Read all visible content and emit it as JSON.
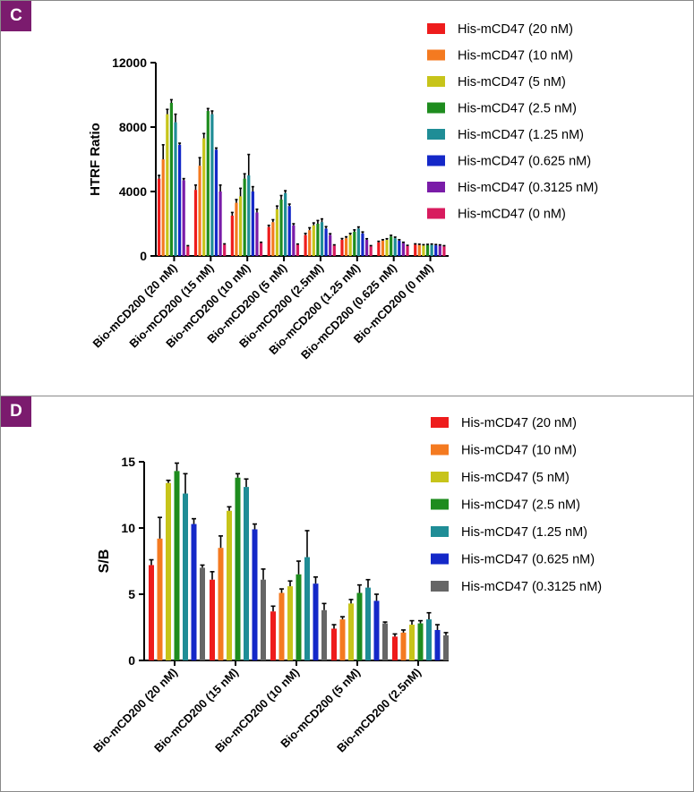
{
  "panels": [
    {
      "tag": "C",
      "chart_data": {
        "type": "bar",
        "ylabel": "HTRF Ratio",
        "ylim": [
          0,
          12000
        ],
        "yticks": [
          0,
          4000,
          8000,
          12000
        ],
        "ytick_labels": [
          "0",
          "4000",
          "8000",
          "12000"
        ],
        "categories": [
          "Bio-mCD200 (20 nM)",
          "Bio-mCD200 (15 nM)",
          "Bio-mCD200 (10 nM)",
          "Bio-mCD200 (5 nM)",
          "Bio-mCD200 (2.5nM)",
          "Bio-mCD200 (1.25 nM)",
          "Bio-mCD200 (0.625 nM)",
          "Bio-mCD200 (0 nM)"
        ],
        "legend_position": "right",
        "grid": false,
        "series": [
          {
            "name": "His-mCD47 (20 nM)",
            "color": "#ee1c1c",
            "values": [
              4800,
              4100,
              2500,
              1800,
              1300,
              1000,
              850,
              700
            ],
            "errors": [
              200,
              300,
              200,
              100,
              100,
              80,
              60,
              50
            ]
          },
          {
            "name": "His-mCD47 (10 nM)",
            "color": "#f47a20",
            "values": [
              6000,
              5600,
              3300,
              2100,
              1600,
              1100,
              950,
              680
            ],
            "errors": [
              900,
              500,
              200,
              150,
              150,
              90,
              60,
              50
            ]
          },
          {
            "name": "His-mCD47 (5 nM)",
            "color": "#c7c41a",
            "values": [
              8800,
              7300,
              3700,
              2900,
              1900,
              1300,
              1000,
              650
            ],
            "errors": [
              300,
              300,
              500,
              200,
              150,
              100,
              70,
              50
            ]
          },
          {
            "name": "His-mCD47 (2.5 nM)",
            "color": "#1e8c1e",
            "values": [
              9500,
              9000,
              4800,
              3500,
              2000,
              1500,
              1200,
              670
            ],
            "errors": [
              200,
              150,
              300,
              250,
              200,
              120,
              80,
              50
            ]
          },
          {
            "name": "His-mCD47 (1.25 nM)",
            "color": "#1f8d96",
            "values": [
              8300,
              8800,
              5000,
              3900,
              2100,
              1700,
              1100,
              690
            ],
            "errors": [
              500,
              200,
              1300,
              150,
              200,
              100,
              70,
              50
            ]
          },
          {
            "name": "His-mCD47 (0.625 nM)",
            "color": "#1428c8",
            "values": [
              6900,
              6600,
              4000,
              3100,
              1700,
              1400,
              950,
              660
            ],
            "errors": [
              100,
              100,
              300,
              120,
              120,
              90,
              60,
              50
            ]
          },
          {
            "name": "His-mCD47 (0.3125 nM)",
            "color": "#7a1ca8",
            "values": [
              4700,
              4000,
              2700,
              1900,
              1300,
              1000,
              800,
              650
            ],
            "errors": [
              100,
              400,
              200,
              100,
              80,
              70,
              50,
              40
            ]
          },
          {
            "name": "His-mCD47 (0 nM)",
            "color": "#d81b5e",
            "values": [
              600,
              700,
              800,
              700,
              650,
              600,
              620,
              600
            ],
            "errors": [
              40,
              50,
              50,
              40,
              40,
              40,
              40,
              40
            ]
          }
        ]
      }
    },
    {
      "tag": "D",
      "chart_data": {
        "type": "bar",
        "ylabel": "S/B",
        "ylim": [
          0,
          15
        ],
        "yticks": [
          0,
          5,
          10,
          15
        ],
        "ytick_labels": [
          "0",
          "5",
          "10",
          "15"
        ],
        "categories": [
          "Bio-mCD200 (20 nM)",
          "Bio-mCD200 (15 nM)",
          "Bio-mCD200 (10 nM)",
          "Bio-mCD200 (5 nM)",
          "Bio-mCD200 (2.5nM)"
        ],
        "legend_position": "right",
        "grid": false,
        "series": [
          {
            "name": "His-mCD47 (20 nM)",
            "color": "#ee1c1c",
            "values": [
              7.2,
              6.1,
              3.7,
              2.4,
              1.8
            ],
            "errors": [
              0.4,
              0.6,
              0.4,
              0.3,
              0.2
            ]
          },
          {
            "name": "His-mCD47 (10 nM)",
            "color": "#f47a20",
            "values": [
              9.2,
              8.5,
              5.1,
              3.1,
              2.1
            ],
            "errors": [
              1.6,
              0.9,
              0.3,
              0.2,
              0.2
            ]
          },
          {
            "name": "His-mCD47 (5 nM)",
            "color": "#c7c41a",
            "values": [
              13.4,
              11.3,
              5.6,
              4.3,
              2.7
            ],
            "errors": [
              0.2,
              0.3,
              0.4,
              0.3,
              0.3
            ]
          },
          {
            "name": "His-mCD47 (2.5 nM)",
            "color": "#1e8c1e",
            "values": [
              14.3,
              13.8,
              6.5,
              5.1,
              2.8
            ],
            "errors": [
              0.6,
              0.3,
              1.0,
              0.6,
              0.2
            ]
          },
          {
            "name": "His-mCD47 (1.25 nM)",
            "color": "#1f8d96",
            "values": [
              12.6,
              13.1,
              7.8,
              5.5,
              3.1
            ],
            "errors": [
              1.5,
              0.6,
              2.0,
              0.6,
              0.5
            ]
          },
          {
            "name": "His-mCD47 (0.625 nM)",
            "color": "#1428c8",
            "values": [
              10.3,
              9.9,
              5.8,
              4.5,
              2.3
            ],
            "errors": [
              0.4,
              0.4,
              0.5,
              0.5,
              0.4
            ]
          },
          {
            "name": "His-mCD47 (0.3125 nM)",
            "color": "#666666",
            "values": [
              7.0,
              6.1,
              3.8,
              2.8,
              1.9
            ],
            "errors": [
              0.2,
              0.8,
              0.5,
              0.1,
              0.2
            ]
          }
        ]
      }
    }
  ]
}
